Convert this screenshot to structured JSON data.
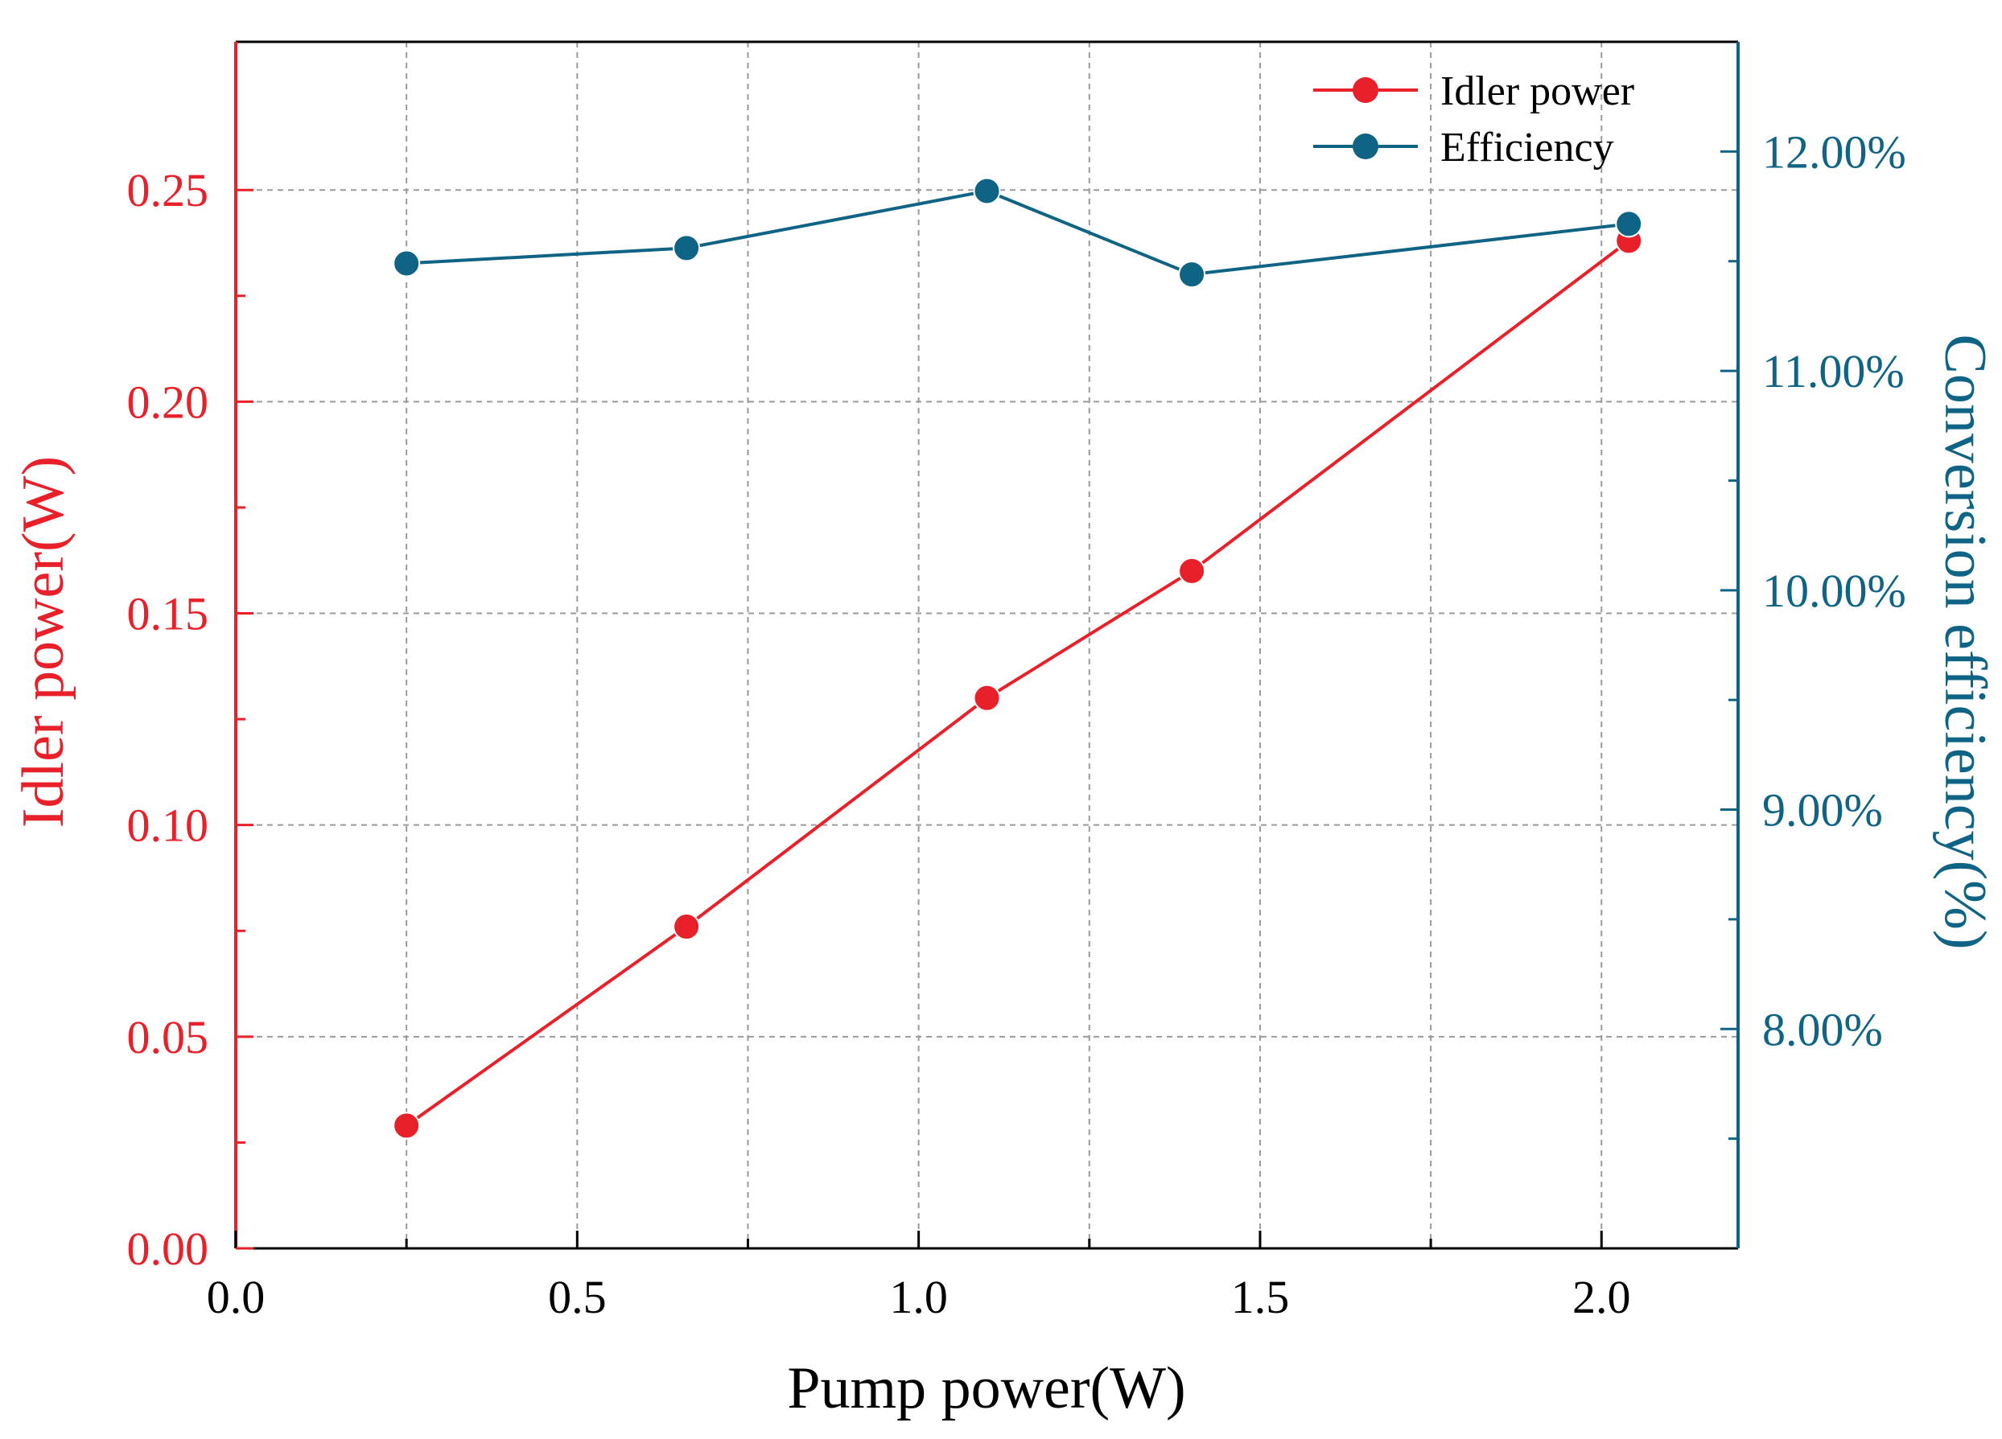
{
  "colors": {
    "idler": "#e8202a",
    "efficiency": "#0f6384",
    "axis": "#000000",
    "grid": "#9a9a9a"
  },
  "chart_data": {
    "type": "line",
    "title": "",
    "xlabel": "Pump power(W)",
    "ylabel_left": "Idler power(W)",
    "ylabel_right": "Conversion efficiency(%)",
    "xlim": [
      0.0,
      2.2
    ],
    "ylim_left": [
      0.0,
      0.285
    ],
    "ylim_right": [
      7.0,
      12.5
    ],
    "x_ticks": [
      0.0,
      0.5,
      1.0,
      1.5,
      2.0
    ],
    "x_tick_labels": [
      "0.0",
      "0.5",
      "1.0",
      "1.5",
      "2.0"
    ],
    "x_minor_ticks": [
      0.25,
      0.75,
      1.25,
      1.75
    ],
    "y_left_ticks": [
      0.0,
      0.05,
      0.1,
      0.15,
      0.2,
      0.25
    ],
    "y_left_tick_labels": [
      "0.00",
      "0.05",
      "0.10",
      "0.15",
      "0.20",
      "0.25"
    ],
    "y_left_minor_ticks": [
      0.025,
      0.075,
      0.125,
      0.175,
      0.225
    ],
    "y_right_ticks": [
      8.0,
      9.0,
      10.0,
      11.0,
      12.0
    ],
    "y_right_tick_labels": [
      "8.00%",
      "9.00%",
      "10.00%",
      "11.00%",
      "12.00%"
    ],
    "y_right_minor_ticks": [
      7.5,
      8.5,
      9.5,
      10.5,
      11.5
    ],
    "grid": true,
    "legend_position": "top-right",
    "series": [
      {
        "name": "Idler power",
        "axis": "left",
        "x": [
          0.25,
          0.66,
          1.1,
          1.4,
          2.04
        ],
        "values": [
          0.029,
          0.076,
          0.13,
          0.16,
          0.238
        ]
      },
      {
        "name": "Efficiency",
        "axis": "right",
        "x": [
          0.25,
          0.66,
          1.1,
          1.4,
          2.04
        ],
        "values": [
          11.49,
          11.56,
          11.82,
          11.44,
          11.67
        ]
      }
    ]
  }
}
